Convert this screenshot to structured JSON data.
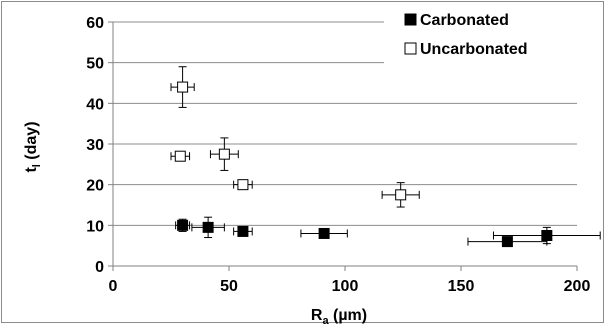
{
  "chart_data": {
    "type": "scatter",
    "xlabel_main": "R",
    "xlabel_sub": "a",
    "xlabel_unit": " (µm)",
    "ylabel_main": "t",
    "ylabel_sub": "l",
    "ylabel_unit": " (day)",
    "xlim": [
      0,
      200
    ],
    "ylim": [
      0,
      60
    ],
    "xticks": [
      0,
      50,
      100,
      150,
      200
    ],
    "yticks": [
      0,
      10,
      20,
      30,
      40,
      50,
      60
    ],
    "grid": "horizontal",
    "legend_position": "top-right",
    "series": [
      {
        "name": "Carbonated",
        "marker": "filled-square",
        "color": "#000000",
        "points": [
          {
            "x": 30,
            "y": 10,
            "xerr": 3,
            "yerr": 1.5
          },
          {
            "x": 41,
            "y": 9.5,
            "xerr": 7,
            "yerr": 2.5
          },
          {
            "x": 56,
            "y": 8.5,
            "xerr": 4,
            "yerr": 1
          },
          {
            "x": 91,
            "y": 8,
            "xerr": 10,
            "yerr": 0.5
          },
          {
            "x": 170,
            "y": 6,
            "xerr": 17,
            "yerr": 1
          },
          {
            "x": 187,
            "y": 7.5,
            "xerr": 23,
            "yerr": 2
          }
        ]
      },
      {
        "name": "Uncarbonated",
        "marker": "open-square",
        "color": "#000000",
        "points": [
          {
            "x": 30,
            "y": 44,
            "xerr": 5,
            "yerr": 5
          },
          {
            "x": 29,
            "y": 27,
            "xerr": 4,
            "yerr": 0.5
          },
          {
            "x": 48,
            "y": 27.5,
            "xerr": 6,
            "yerr": 4
          },
          {
            "x": 56,
            "y": 20,
            "xerr": 4,
            "yerr": 0.5
          },
          {
            "x": 124,
            "y": 17.5,
            "xerr": 8,
            "yerr": 3
          }
        ]
      }
    ]
  }
}
